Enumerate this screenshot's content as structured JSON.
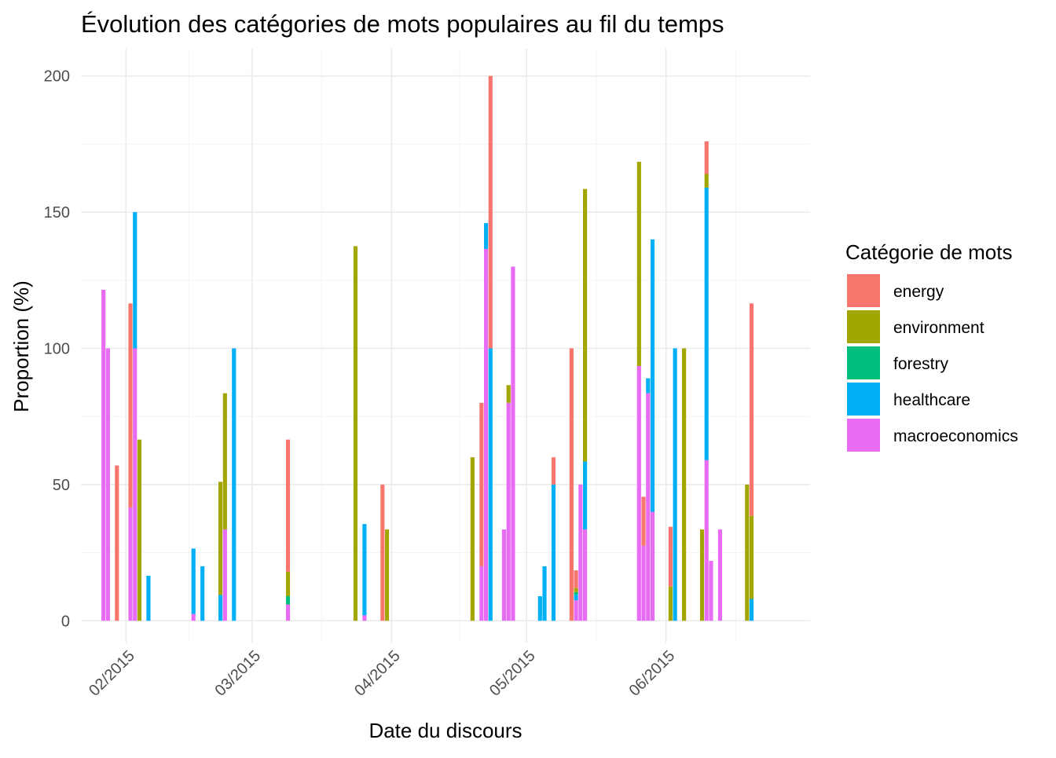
{
  "chart_data": {
    "type": "bar",
    "stacked": true,
    "title": "Évolution des catégories de mots populaires au fil du temps",
    "xlabel": "Date du discours",
    "ylabel": "Proportion (%)",
    "ylim": [
      -8,
      210
    ],
    "xlim": [
      "2015-01-22",
      "2015-07-03"
    ],
    "x_ticks": [
      {
        "date": "2015-02-01",
        "label": "02/2015"
      },
      {
        "date": "2015-03-01",
        "label": "03/2015"
      },
      {
        "date": "2015-04-01",
        "label": "04/2015"
      },
      {
        "date": "2015-05-01",
        "label": "05/2015"
      },
      {
        "date": "2015-06-01",
        "label": "06/2015"
      }
    ],
    "y_ticks": [
      0,
      50,
      100,
      150,
      200
    ],
    "grid": true,
    "legend": {
      "title": "Catégorie de mots",
      "position": "right",
      "entries": [
        "energy",
        "environment",
        "forestry",
        "healthcare",
        "macroeconomics"
      ]
    },
    "colors": {
      "energy": "#F8766D",
      "environment": "#A3A500",
      "forestry": "#00BF7D",
      "healthcare": "#00B0F6",
      "macroeconomics": "#E76BF3"
    },
    "bars": [
      {
        "date": "2015-01-27",
        "macroeconomics": 121.5
      },
      {
        "date": "2015-01-28",
        "macroeconomics": 100
      },
      {
        "date": "2015-01-30",
        "energy": 57
      },
      {
        "date": "2015-02-02",
        "macroeconomics": 41.5,
        "energy": 75
      },
      {
        "date": "2015-02-03",
        "macroeconomics": 100,
        "healthcare": 50
      },
      {
        "date": "2015-02-04",
        "environment": 66.5
      },
      {
        "date": "2015-02-06",
        "healthcare": 16.5
      },
      {
        "date": "2015-02-16",
        "macroeconomics": 2.5,
        "healthcare": 24
      },
      {
        "date": "2015-02-18",
        "healthcare": 20
      },
      {
        "date": "2015-02-22",
        "healthcare": 9.5,
        "environment": 41.5
      },
      {
        "date": "2015-02-23",
        "macroeconomics": 33.5,
        "environment": 50
      },
      {
        "date": "2015-02-25",
        "healthcare": 100
      },
      {
        "date": "2015-03-09",
        "macroeconomics": 6,
        "forestry": 3,
        "environment": 9,
        "energy": 48.5
      },
      {
        "date": "2015-03-24",
        "environment": 137.5
      },
      {
        "date": "2015-03-26",
        "macroeconomics": 2,
        "healthcare": 33.5
      },
      {
        "date": "2015-03-30",
        "energy": 50
      },
      {
        "date": "2015-03-31",
        "environment": 33.5
      },
      {
        "date": "2015-04-19",
        "environment": 60
      },
      {
        "date": "2015-04-21",
        "macroeconomics": 20,
        "energy": 60
      },
      {
        "date": "2015-04-22",
        "macroeconomics": 136.5,
        "healthcare": 9.5
      },
      {
        "date": "2015-04-23",
        "healthcare": 100,
        "energy": 100
      },
      {
        "date": "2015-04-26",
        "macroeconomics": 33.5
      },
      {
        "date": "2015-04-27",
        "macroeconomics": 80,
        "environment": 6.5
      },
      {
        "date": "2015-04-28",
        "macroeconomics": 130
      },
      {
        "date": "2015-05-04",
        "healthcare": 9
      },
      {
        "date": "2015-05-05",
        "healthcare": 20
      },
      {
        "date": "2015-05-07",
        "healthcare": 50,
        "energy": 10
      },
      {
        "date": "2015-05-11",
        "energy": 100
      },
      {
        "date": "2015-05-12",
        "macroeconomics": 7.5,
        "healthcare": 2,
        "forestry": 1,
        "environment": 1.5,
        "energy": 6.5
      },
      {
        "date": "2015-05-13",
        "macroeconomics": 50
      },
      {
        "date": "2015-05-14",
        "macroeconomics": 33.5,
        "healthcare": 25,
        "environment": 100
      },
      {
        "date": "2015-05-26",
        "macroeconomics": 93.5,
        "environment": 75
      },
      {
        "date": "2015-05-27",
        "macroeconomics": 27.5,
        "energy": 18
      },
      {
        "date": "2015-05-28",
        "macroeconomics": 83.5,
        "healthcare": 5.5
      },
      {
        "date": "2015-05-29",
        "macroeconomics": 40,
        "healthcare": 100
      },
      {
        "date": "2015-06-02",
        "environment": 12.5,
        "energy": 22
      },
      {
        "date": "2015-06-03",
        "healthcare": 100
      },
      {
        "date": "2015-06-05",
        "environment": 100
      },
      {
        "date": "2015-06-09",
        "environment": 33.5
      },
      {
        "date": "2015-06-10",
        "macroeconomics": 59,
        "healthcare": 100,
        "environment": 5,
        "energy": 12
      },
      {
        "date": "2015-06-11",
        "macroeconomics": 22
      },
      {
        "date": "2015-06-13",
        "macroeconomics": 33.5
      },
      {
        "date": "2015-06-19",
        "environment": 50
      },
      {
        "date": "2015-06-20",
        "healthcare": 8,
        "environment": 30.5,
        "energy": 78
      }
    ]
  }
}
